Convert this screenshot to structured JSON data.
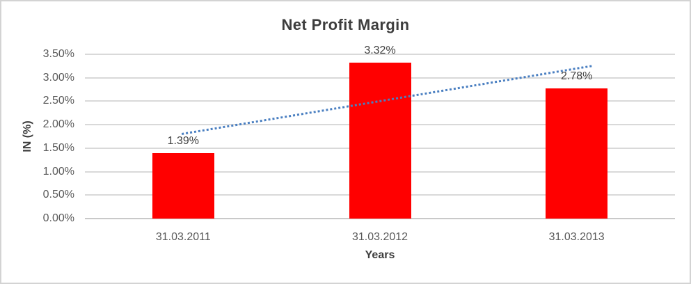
{
  "chart_data": {
    "type": "bar",
    "title": "Net Profit Margin",
    "xlabel": "Years",
    "ylabel": "IN (%)",
    "categories": [
      "31.03.2011",
      "31.03.2012",
      "31.03.2013"
    ],
    "values": [
      1.39,
      3.32,
      2.78
    ],
    "data_labels": [
      "1.39%",
      "3.32%",
      "2.78%"
    ],
    "ylim": [
      0,
      3.5
    ],
    "ytick_labels": [
      "0.00%",
      "0.50%",
      "1.00%",
      "1.50%",
      "2.00%",
      "2.50%",
      "3.00%",
      "3.50%"
    ],
    "grid": true,
    "legend": "none",
    "trendline": {
      "type": "linear",
      "style": "dotted"
    },
    "colors": {
      "bar": "#ff0000",
      "trendline": "#4a7fc1",
      "gridline": "#d9d9d9",
      "axis_line": "#c9c9c9",
      "frame_border": "#d3d3d3"
    }
  }
}
